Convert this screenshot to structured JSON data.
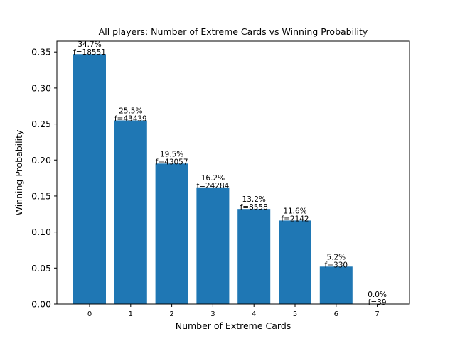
{
  "chart_data": {
    "type": "bar",
    "title": "All players: Number of Extreme Cards vs Winning Probability",
    "xlabel": "Number of Extreme Cards",
    "ylabel": "Winning Probability",
    "categories": [
      "0",
      "1",
      "2",
      "3",
      "4",
      "5",
      "6",
      "7"
    ],
    "values": [
      0.347,
      0.255,
      0.195,
      0.162,
      0.132,
      0.116,
      0.052,
      0.0
    ],
    "bar_labels": [
      [
        "34.7%",
        "f=18551"
      ],
      [
        "25.5%",
        "f=43439"
      ],
      [
        "19.5%",
        "f=43057"
      ],
      [
        "16.2%",
        "f=24284"
      ],
      [
        "13.2%",
        "f=8558"
      ],
      [
        "11.6%",
        "f=2142"
      ],
      [
        "5.2%",
        "f=330"
      ],
      [
        "0.0%",
        "f=39"
      ]
    ],
    "ylim": [
      0,
      0.365
    ],
    "yticks": [
      "0.00",
      "0.05",
      "0.10",
      "0.15",
      "0.20",
      "0.25",
      "0.30",
      "0.35"
    ],
    "bar_color": "#1f77b4",
    "grid": false,
    "legend": "none"
  }
}
